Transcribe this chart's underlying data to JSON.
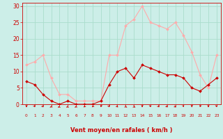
{
  "hours": [
    0,
    1,
    2,
    3,
    4,
    5,
    6,
    7,
    8,
    9,
    10,
    11,
    12,
    13,
    14,
    15,
    16,
    17,
    18,
    19,
    20,
    21,
    22,
    23
  ],
  "vent_moyen": [
    7,
    6,
    3,
    1,
    0,
    1,
    0,
    0,
    0,
    1,
    6,
    10,
    11,
    8,
    12,
    11,
    10,
    9,
    9,
    8,
    5,
    4,
    6,
    8
  ],
  "rafales": [
    12,
    13,
    15,
    8,
    3,
    3,
    1,
    1,
    1,
    1,
    15,
    15,
    24,
    26,
    30,
    25,
    24,
    23,
    25,
    21,
    16,
    9,
    5,
    15
  ],
  "color_moyen": "#cc0000",
  "color_rafales": "#ffaaaa",
  "bg_color": "#cceee8",
  "grid_color": "#aaddcc",
  "xlabel": "Vent moyen/en rafales ( km/h )",
  "ylabel_values": [
    0,
    5,
    10,
    15,
    20,
    25,
    30
  ],
  "ylim": [
    0,
    31
  ],
  "xlim": [
    -0.5,
    23.5
  ],
  "xlabel_color": "#cc0000",
  "tick_color": "#cc0000",
  "arrow_dirs": [
    180,
    170,
    165,
    210,
    220,
    215,
    210,
    200,
    195,
    185,
    170,
    160,
    150,
    145,
    180,
    175,
    165,
    160,
    155,
    175,
    180,
    185,
    180,
    175
  ]
}
